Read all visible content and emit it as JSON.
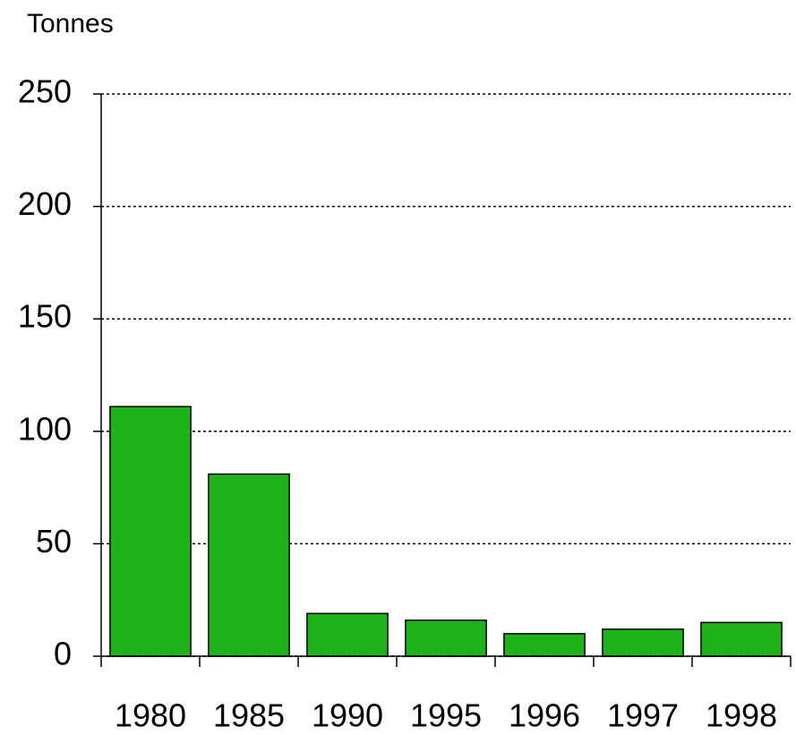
{
  "chart_data": {
    "type": "bar",
    "y_label": "Tonnes",
    "categories": [
      "1980",
      "1985",
      "1990",
      "1995",
      "1996",
      "1997",
      "1998"
    ],
    "values": [
      111,
      81,
      19,
      16,
      10,
      12,
      15
    ],
    "color": "#20b21a",
    "ylim": [
      0,
      250
    ],
    "yticks": [
      0,
      50,
      100,
      150,
      200,
      250
    ],
    "grid": true
  }
}
